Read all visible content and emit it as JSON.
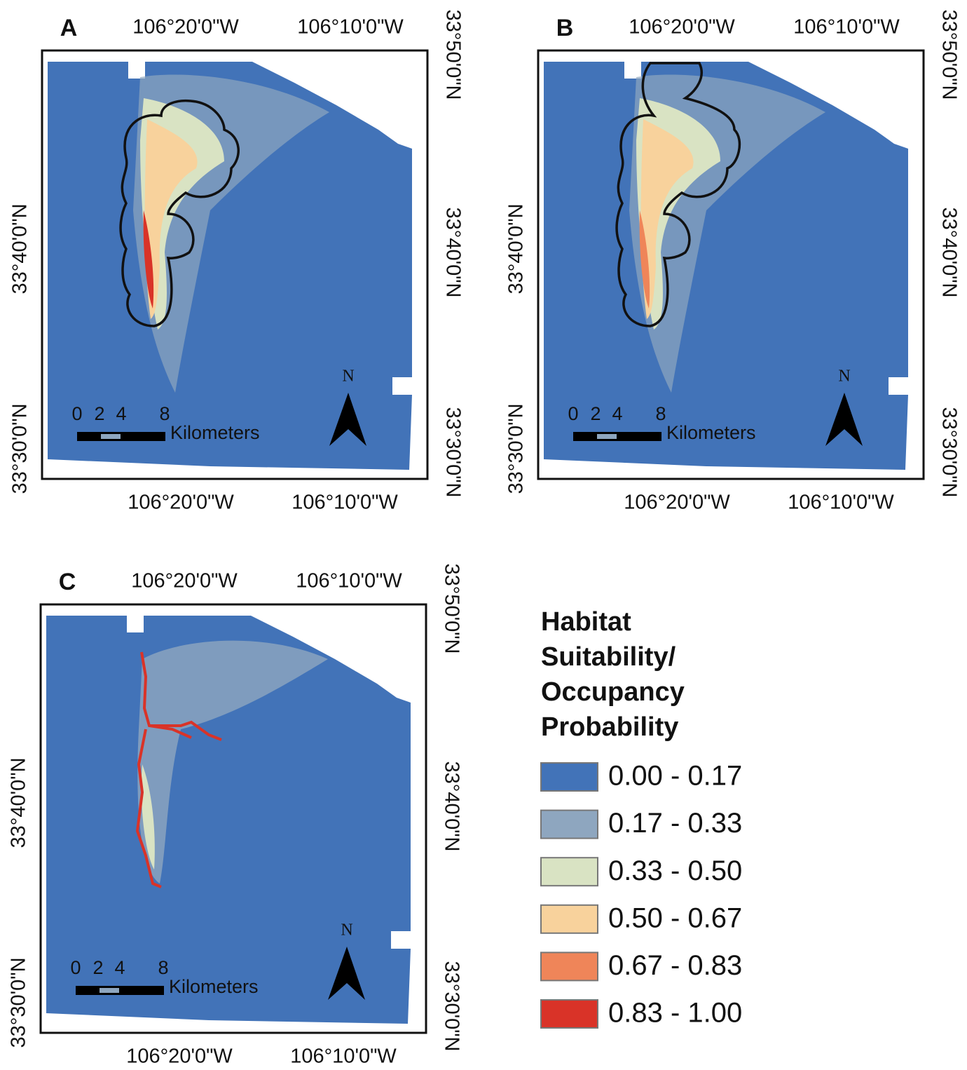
{
  "panels": [
    {
      "label": "A",
      "top_ticks": [
        "106°20'0\"W",
        "106°10'0\"W"
      ],
      "bottom_ticks": [
        "106°20'0\"W",
        "106°10'0\"W"
      ],
      "left_ticks": [
        "33°40'0\"N",
        "33°30'0\"N"
      ],
      "right_ticks": [
        "33°50'0\"N",
        "33°40'0\"N",
        "33°30'0\"N"
      ],
      "scale_labels": [
        "0",
        "2",
        "4",
        "8"
      ],
      "scale_unit": "Kilometers",
      "north": "N"
    },
    {
      "label": "B",
      "top_ticks": [
        "106°20'0\"W",
        "106°10'0\"W"
      ],
      "bottom_ticks": [
        "106°20'0\"W",
        "106°10'0\"W"
      ],
      "left_ticks": [
        "33°40'0\"N",
        "33°30'0\"N"
      ],
      "right_ticks": [
        "33°50'0\"N",
        "33°40'0\"N",
        "33°30'0\"N"
      ],
      "scale_labels": [
        "0",
        "2",
        "4",
        "8"
      ],
      "scale_unit": "Kilometers",
      "north": "N"
    },
    {
      "label": "C",
      "top_ticks": [
        "106°20'0\"W",
        "106°10'0\"W"
      ],
      "bottom_ticks": [
        "106°20'0\"W",
        "106°10'0\"W"
      ],
      "left_ticks": [
        "33°40'0\"N",
        "33°30'0\"N"
      ],
      "right_ticks": [
        "33°50'0\"N",
        "33°40'0\"N",
        "33°30'0\"N"
      ],
      "scale_labels": [
        "0",
        "2",
        "4",
        "8"
      ],
      "scale_unit": "Kilometers",
      "north": "N"
    }
  ],
  "legend": {
    "title": [
      "Habitat",
      "Suitability/",
      "Occupancy",
      "Probability"
    ],
    "items": [
      {
        "label": "0.00 - 0.17",
        "color": "#4273b8"
      },
      {
        "label": "0.17 - 0.33",
        "color": "#8ea6bf"
      },
      {
        "label": "0.33 - 0.50",
        "color": "#d9e3c3"
      },
      {
        "label": "0.50 - 0.67",
        "color": "#f8d29c"
      },
      {
        "label": "0.67 - 0.83",
        "color": "#ef8559"
      },
      {
        "label": "0.83 - 1.00",
        "color": "#d93328"
      }
    ]
  }
}
